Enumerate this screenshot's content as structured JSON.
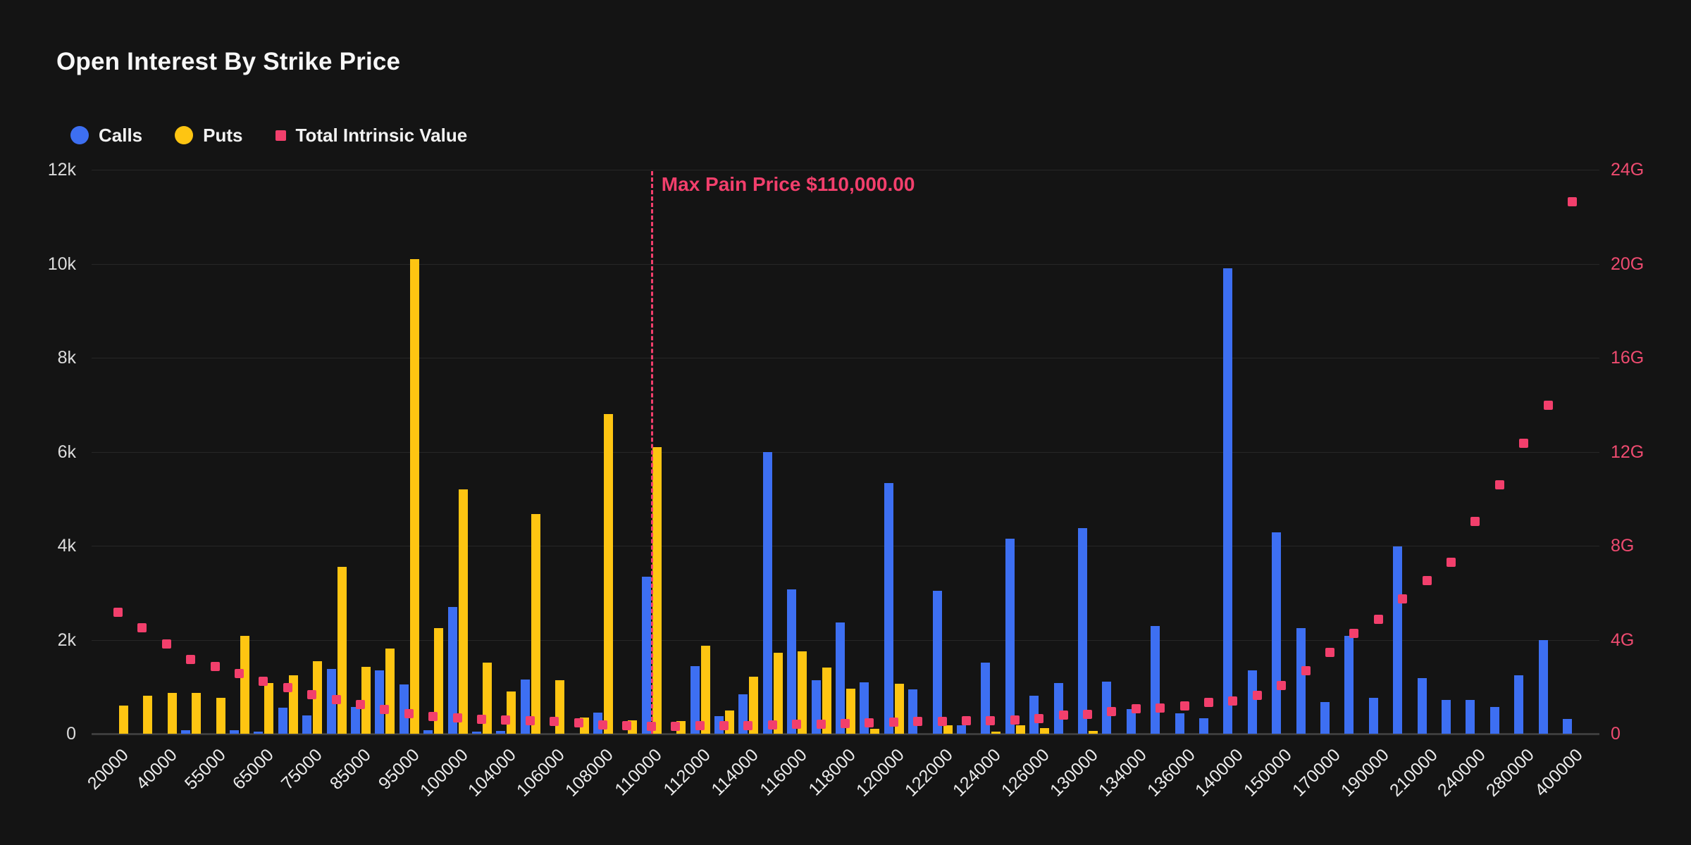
{
  "title": "Open Interest By Strike Price",
  "legend": [
    {
      "label": "Calls",
      "color": "#3d6ff2",
      "shape": "circle"
    },
    {
      "label": "Puts",
      "color": "#fec512",
      "shape": "circle"
    },
    {
      "label": "Total Intrinsic Value",
      "color": "#f23f6c",
      "shape": "square"
    }
  ],
  "colors": {
    "background": "#141414",
    "calls": "#3d6ff2",
    "puts": "#fec512",
    "intrinsic": "#f23f6c",
    "gridline": "#272727",
    "axis_line": "#3d3d3d",
    "left_tick_text": "#dcdcdc",
    "right_tick_text": "#ef4b70",
    "x_tick_text": "#ececec"
  },
  "max_pain": {
    "label": "Max Pain Price $110,000.00",
    "category_index": 22
  },
  "chart_data": {
    "type": "bar",
    "title": "Open Interest By Strike Price",
    "grid": true,
    "legend_position": "top-left",
    "x_label_every": 2,
    "categories": [
      "20000",
      "",
      "40000",
      "",
      "55000",
      "",
      "65000",
      "",
      "75000",
      "",
      "85000",
      "",
      "95000",
      "",
      "100000",
      "",
      "104000",
      "",
      "106000",
      "",
      "108000",
      "",
      "110000",
      "",
      "112000",
      "",
      "114000",
      "",
      "116000",
      "",
      "118000",
      "",
      "120000",
      "",
      "122000",
      "",
      "124000",
      "",
      "126000",
      "",
      "130000",
      "",
      "134000",
      "",
      "136000",
      "",
      "140000",
      "",
      "150000",
      "",
      "170000",
      "",
      "190000",
      "",
      "210000",
      "",
      "240000",
      "",
      "280000",
      "",
      "400000"
    ],
    "left_axis": {
      "min": 0,
      "max": 12000,
      "ticks": [
        "0",
        "2k",
        "4k",
        "6k",
        "8k",
        "10k",
        "12k"
      ]
    },
    "right_axis": {
      "min": 0,
      "max": 24,
      "unit": "G",
      "ticks": [
        "0",
        "4G",
        "8G",
        "12G",
        "16G",
        "20G",
        "24G"
      ]
    },
    "series": [
      {
        "name": "Calls",
        "type": "bar",
        "axis": "left",
        "color": "#3d6ff2",
        "values": [
          0,
          0,
          0,
          70,
          0,
          70,
          40,
          550,
          390,
          1375,
          575,
          1350,
          1050,
          80,
          2690,
          50,
          60,
          1150,
          0,
          0,
          455,
          0,
          3340,
          0,
          1440,
          380,
          840,
          6000,
          3070,
          1140,
          2365,
          1100,
          5330,
          950,
          3045,
          185,
          1510,
          4150,
          805,
          1080,
          4375,
          1105,
          530,
          2290,
          430,
          325,
          9900,
          1350,
          4280,
          2245,
          680,
          2075,
          760,
          3980,
          1185,
          720,
          720,
          565,
          1245,
          1990,
          315
        ]
      },
      {
        "name": "Puts",
        "type": "bar",
        "axis": "left",
        "color": "#fec512",
        "values": [
          600,
          810,
          870,
          870,
          760,
          2080,
          1080,
          1240,
          1550,
          3550,
          1430,
          1820,
          10100,
          2250,
          5200,
          1520,
          900,
          4680,
          1140,
          340,
          6800,
          290,
          6100,
          275,
          1880,
          490,
          1220,
          1720,
          1750,
          1410,
          955,
          100,
          1060,
          0,
          175,
          0,
          50,
          175,
          125,
          0,
          60,
          0,
          0,
          0,
          0,
          0,
          0,
          0,
          0,
          0,
          0,
          0,
          0,
          0,
          0,
          0,
          0,
          0,
          0,
          0,
          0
        ]
      },
      {
        "name": "Total Intrinsic Value",
        "type": "scatter",
        "axis": "right",
        "color": "#f23f6c",
        "values": [
          5.14,
          4.49,
          3.82,
          3.16,
          2.84,
          2.54,
          2.23,
          1.94,
          1.65,
          1.45,
          1.22,
          1.02,
          0.84,
          0.71,
          0.66,
          0.61,
          0.58,
          0.55,
          0.52,
          0.46,
          0.36,
          0.33,
          0.3,
          0.31,
          0.32,
          0.33,
          0.34,
          0.36,
          0.38,
          0.4,
          0.42,
          0.44,
          0.48,
          0.5,
          0.52,
          0.55,
          0.55,
          0.57,
          0.63,
          0.77,
          0.8,
          0.93,
          1.04,
          1.08,
          1.16,
          1.31,
          1.38,
          1.62,
          2.03,
          2.66,
          3.44,
          4.24,
          4.86,
          5.71,
          6.49,
          7.29,
          9.01,
          10.59,
          12.33,
          13.97,
          22.62
        ]
      }
    ]
  }
}
